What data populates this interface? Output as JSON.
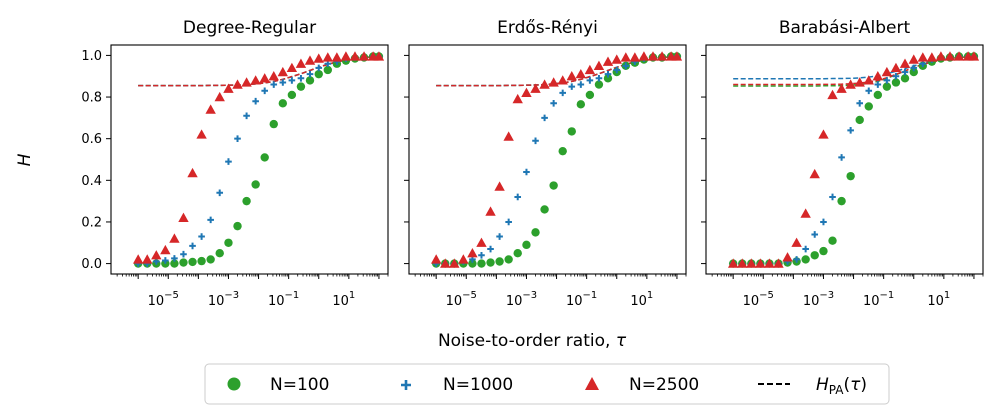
{
  "figure": {
    "y_label": "H",
    "x_label": "Noise-to-order ratio, τ"
  },
  "legend": {
    "placement": "bottom-center",
    "entries": [
      {
        "label": "N=100",
        "marker": "circle",
        "color": "#2ca02c"
      },
      {
        "label": "N=1000",
        "marker": "plus",
        "color": "#1f77b4"
      },
      {
        "label": "N=2500",
        "marker": "triangle",
        "color": "#d62728"
      },
      {
        "label": "H_PA(τ)",
        "marker": "dashed-line",
        "color": "#000000"
      }
    ]
  },
  "colors": {
    "N100": "#2ca02c",
    "N1000": "#1f77b4",
    "N2500": "#d62728"
  },
  "chart_data": [
    {
      "type": "scatter",
      "title": "Degree-Regular",
      "xscale": "log",
      "xlim": [
        1.25e-07,
        200
      ],
      "ylim": [
        -0.05,
        1.05
      ],
      "xticks": [
        {
          "v": 1e-05,
          "base": "10",
          "exp": "−5"
        },
        {
          "v": 0.001,
          "base": "10",
          "exp": "−3"
        },
        {
          "v": 0.1,
          "base": "10",
          "exp": "−1"
        },
        {
          "v": 10,
          "base": "10",
          "exp": "1"
        }
      ],
      "yticks": [
        {
          "v": 0,
          "label": "0.0"
        },
        {
          "v": 0.2,
          "label": "0.2"
        },
        {
          "v": 0.4,
          "label": "0.4"
        },
        {
          "v": 0.6,
          "label": "0.6"
        },
        {
          "v": 0.8,
          "label": "0.8"
        },
        {
          "v": 1,
          "label": "1.0"
        }
      ],
      "x": [
        1e-06,
        2e-06,
        4e-06,
        8e-06,
        1.6e-05,
        3.2e-05,
        6.4e-05,
        0.000128,
        0.000256,
        0.000512,
        0.001,
        0.002,
        0.004,
        0.008,
        0.016,
        0.032,
        0.064,
        0.128,
        0.256,
        0.512,
        1,
        2,
        4,
        8,
        16,
        32,
        64,
        100
      ],
      "series": [
        {
          "name": "N=100",
          "marker": "circle",
          "values": [
            0.0,
            0.0,
            0.0,
            0.0,
            0.0,
            0.005,
            0.008,
            0.012,
            0.02,
            0.05,
            0.1,
            0.18,
            0.3,
            0.38,
            0.51,
            0.67,
            0.77,
            0.81,
            0.85,
            0.88,
            0.91,
            0.93,
            0.96,
            0.975,
            0.985,
            0.99,
            0.995,
            0.995
          ]
        },
        {
          "name": "N=1000",
          "marker": "plus",
          "values": [
            0.0,
            0.0,
            0.01,
            0.015,
            0.025,
            0.045,
            0.085,
            0.13,
            0.21,
            0.34,
            0.49,
            0.6,
            0.71,
            0.78,
            0.83,
            0.86,
            0.87,
            0.88,
            0.89,
            0.91,
            0.94,
            0.96,
            0.97,
            0.985,
            0.99,
            0.99,
            0.995,
            0.995
          ]
        },
        {
          "name": "N=2500",
          "marker": "triangle",
          "values": [
            0.02,
            0.02,
            0.04,
            0.065,
            0.12,
            0.22,
            0.435,
            0.62,
            0.74,
            0.8,
            0.84,
            0.86,
            0.87,
            0.88,
            0.89,
            0.9,
            0.92,
            0.94,
            0.96,
            0.975,
            0.985,
            0.99,
            0.99,
            0.995,
            0.995,
            0.995,
            0.995,
            0.995
          ]
        }
      ],
      "pa_curves": [
        {
          "color": "#2ca02c",
          "values": [
            0.855,
            0.855,
            0.855,
            0.855,
            0.855,
            0.855,
            0.855,
            0.855,
            0.856,
            0.856,
            0.857,
            0.858,
            0.86,
            0.863,
            0.868,
            0.875,
            0.885,
            0.898,
            0.912,
            0.928,
            0.943,
            0.957,
            0.969,
            0.978,
            0.985,
            0.99,
            0.993,
            0.995
          ]
        },
        {
          "color": "#1f77b4",
          "values": [
            0.855,
            0.855,
            0.855,
            0.855,
            0.855,
            0.855,
            0.855,
            0.855,
            0.856,
            0.856,
            0.857,
            0.858,
            0.86,
            0.863,
            0.868,
            0.875,
            0.885,
            0.898,
            0.912,
            0.928,
            0.943,
            0.957,
            0.969,
            0.978,
            0.985,
            0.99,
            0.993,
            0.995
          ]
        },
        {
          "color": "#d62728",
          "values": [
            0.855,
            0.855,
            0.855,
            0.855,
            0.855,
            0.855,
            0.855,
            0.855,
            0.856,
            0.856,
            0.857,
            0.858,
            0.86,
            0.863,
            0.868,
            0.875,
            0.885,
            0.898,
            0.912,
            0.928,
            0.943,
            0.957,
            0.969,
            0.978,
            0.985,
            0.99,
            0.993,
            0.995
          ]
        }
      ],
      "grid": false
    },
    {
      "type": "scatter",
      "title": "Erdős-Rényi",
      "xscale": "log",
      "xlim": [
        1.25e-07,
        200
      ],
      "ylim": [
        -0.05,
        1.05
      ],
      "xticks": [
        {
          "v": 1e-05,
          "base": "10",
          "exp": "−5"
        },
        {
          "v": 0.001,
          "base": "10",
          "exp": "−3"
        },
        {
          "v": 0.1,
          "base": "10",
          "exp": "−1"
        },
        {
          "v": 10,
          "base": "10",
          "exp": "1"
        }
      ],
      "yticks": [],
      "x": [
        1e-06,
        2e-06,
        4e-06,
        8e-06,
        1.6e-05,
        3.2e-05,
        6.4e-05,
        0.000128,
        0.000256,
        0.000512,
        0.001,
        0.002,
        0.004,
        0.008,
        0.016,
        0.032,
        0.064,
        0.128,
        0.256,
        0.512,
        1,
        2,
        4,
        8,
        16,
        32,
        64,
        100
      ],
      "series": [
        {
          "name": "N=100",
          "marker": "circle",
          "values": [
            0.0,
            0.0,
            0.0,
            0.0,
            0.0,
            0.0,
            0.005,
            0.01,
            0.02,
            0.05,
            0.09,
            0.15,
            0.26,
            0.375,
            0.54,
            0.635,
            0.765,
            0.81,
            0.86,
            0.89,
            0.92,
            0.95,
            0.965,
            0.98,
            0.99,
            0.99,
            0.995,
            0.995
          ]
        },
        {
          "name": "N=1000",
          "marker": "plus",
          "values": [
            0.0,
            0.0,
            0.0,
            0.01,
            0.02,
            0.04,
            0.07,
            0.13,
            0.2,
            0.32,
            0.44,
            0.59,
            0.7,
            0.77,
            0.82,
            0.85,
            0.86,
            0.88,
            0.89,
            0.91,
            0.93,
            0.95,
            0.97,
            0.985,
            0.99,
            0.99,
            0.995,
            0.995
          ]
        },
        {
          "name": "N=2500",
          "marker": "triangle",
          "values": [
            0.02,
            0.0,
            0.0,
            0.02,
            0.05,
            0.1,
            0.25,
            0.37,
            0.61,
            0.79,
            0.82,
            0.84,
            0.86,
            0.87,
            0.88,
            0.9,
            0.91,
            0.93,
            0.95,
            0.97,
            0.98,
            0.99,
            0.99,
            0.995,
            0.995,
            0.995,
            0.995,
            0.995
          ]
        }
      ],
      "pa_curves": [
        {
          "color": "#2ca02c",
          "values": [
            0.855,
            0.855,
            0.855,
            0.855,
            0.855,
            0.855,
            0.855,
            0.855,
            0.856,
            0.856,
            0.857,
            0.858,
            0.86,
            0.863,
            0.868,
            0.875,
            0.885,
            0.898,
            0.912,
            0.928,
            0.943,
            0.957,
            0.969,
            0.978,
            0.985,
            0.99,
            0.993,
            0.995
          ]
        },
        {
          "color": "#1f77b4",
          "values": [
            0.855,
            0.855,
            0.855,
            0.855,
            0.855,
            0.855,
            0.855,
            0.855,
            0.856,
            0.856,
            0.857,
            0.858,
            0.86,
            0.863,
            0.868,
            0.875,
            0.885,
            0.898,
            0.912,
            0.928,
            0.943,
            0.957,
            0.969,
            0.978,
            0.985,
            0.99,
            0.993,
            0.995
          ]
        },
        {
          "color": "#d62728",
          "values": [
            0.855,
            0.855,
            0.855,
            0.855,
            0.855,
            0.855,
            0.855,
            0.855,
            0.856,
            0.856,
            0.857,
            0.858,
            0.86,
            0.863,
            0.868,
            0.875,
            0.885,
            0.898,
            0.912,
            0.928,
            0.943,
            0.957,
            0.969,
            0.978,
            0.985,
            0.99,
            0.993,
            0.995
          ]
        }
      ],
      "grid": false
    },
    {
      "type": "scatter",
      "title": "Barabási-Albert",
      "xscale": "log",
      "xlim": [
        1.25e-07,
        200
      ],
      "ylim": [
        -0.05,
        1.05
      ],
      "xticks": [
        {
          "v": 1e-05,
          "base": "10",
          "exp": "−5"
        },
        {
          "v": 0.001,
          "base": "10",
          "exp": "−3"
        },
        {
          "v": 0.1,
          "base": "10",
          "exp": "−1"
        },
        {
          "v": 10,
          "base": "10",
          "exp": "1"
        }
      ],
      "yticks": [],
      "x": [
        1e-06,
        2e-06,
        4e-06,
        8e-06,
        1.6e-05,
        3.2e-05,
        6.4e-05,
        0.000128,
        0.000256,
        0.000512,
        0.001,
        0.002,
        0.004,
        0.008,
        0.016,
        0.032,
        0.064,
        0.128,
        0.256,
        0.512,
        1,
        2,
        4,
        8,
        16,
        32,
        64,
        100
      ],
      "series": [
        {
          "name": "N=100",
          "marker": "circle",
          "values": [
            0.0,
            0.0,
            0.0,
            0.0,
            0.0,
            0.0,
            0.005,
            0.01,
            0.02,
            0.04,
            0.06,
            0.11,
            0.3,
            0.42,
            0.69,
            0.755,
            0.81,
            0.85,
            0.87,
            0.89,
            0.92,
            0.95,
            0.97,
            0.985,
            0.99,
            0.995,
            0.995,
            0.995
          ]
        },
        {
          "name": "N=1000",
          "marker": "plus",
          "values": [
            0.0,
            0.0,
            0.0,
            0.0,
            0.0,
            0.0,
            0.01,
            0.02,
            0.07,
            0.14,
            0.2,
            0.32,
            0.51,
            0.64,
            0.77,
            0.83,
            0.86,
            0.88,
            0.9,
            0.92,
            0.94,
            0.96,
            0.98,
            0.99,
            0.99,
            0.995,
            0.995,
            0.995
          ]
        },
        {
          "name": "N=2500",
          "marker": "triangle",
          "values": [
            0.0,
            0.0,
            0.0,
            0.0,
            0.0,
            0.0,
            0.03,
            0.1,
            0.24,
            0.43,
            0.62,
            0.81,
            0.84,
            0.86,
            0.87,
            0.88,
            0.9,
            0.92,
            0.94,
            0.96,
            0.98,
            0.99,
            0.99,
            0.995,
            0.995,
            0.995,
            0.995,
            0.995
          ]
        }
      ],
      "pa_curves": [
        {
          "color": "#2ca02c",
          "values": [
            0.853,
            0.853,
            0.853,
            0.853,
            0.853,
            0.853,
            0.853,
            0.853,
            0.853,
            0.853,
            0.854,
            0.854,
            0.855,
            0.857,
            0.86,
            0.866,
            0.875,
            0.89,
            0.907,
            0.925,
            0.942,
            0.957,
            0.969,
            0.978,
            0.985,
            0.99,
            0.993,
            0.995
          ]
        },
        {
          "color": "#1f77b4",
          "values": [
            0.888,
            0.888,
            0.888,
            0.888,
            0.888,
            0.888,
            0.888,
            0.888,
            0.888,
            0.888,
            0.888,
            0.889,
            0.889,
            0.89,
            0.892,
            0.896,
            0.902,
            0.912,
            0.924,
            0.937,
            0.95,
            0.962,
            0.972,
            0.98,
            0.986,
            0.99,
            0.993,
            0.995
          ]
        },
        {
          "color": "#d62728",
          "values": [
            0.86,
            0.86,
            0.86,
            0.86,
            0.86,
            0.86,
            0.86,
            0.86,
            0.86,
            0.86,
            0.861,
            0.861,
            0.862,
            0.864,
            0.867,
            0.872,
            0.88,
            0.893,
            0.909,
            0.926,
            0.943,
            0.957,
            0.969,
            0.978,
            0.985,
            0.99,
            0.993,
            0.995
          ]
        }
      ],
      "grid": false
    }
  ]
}
